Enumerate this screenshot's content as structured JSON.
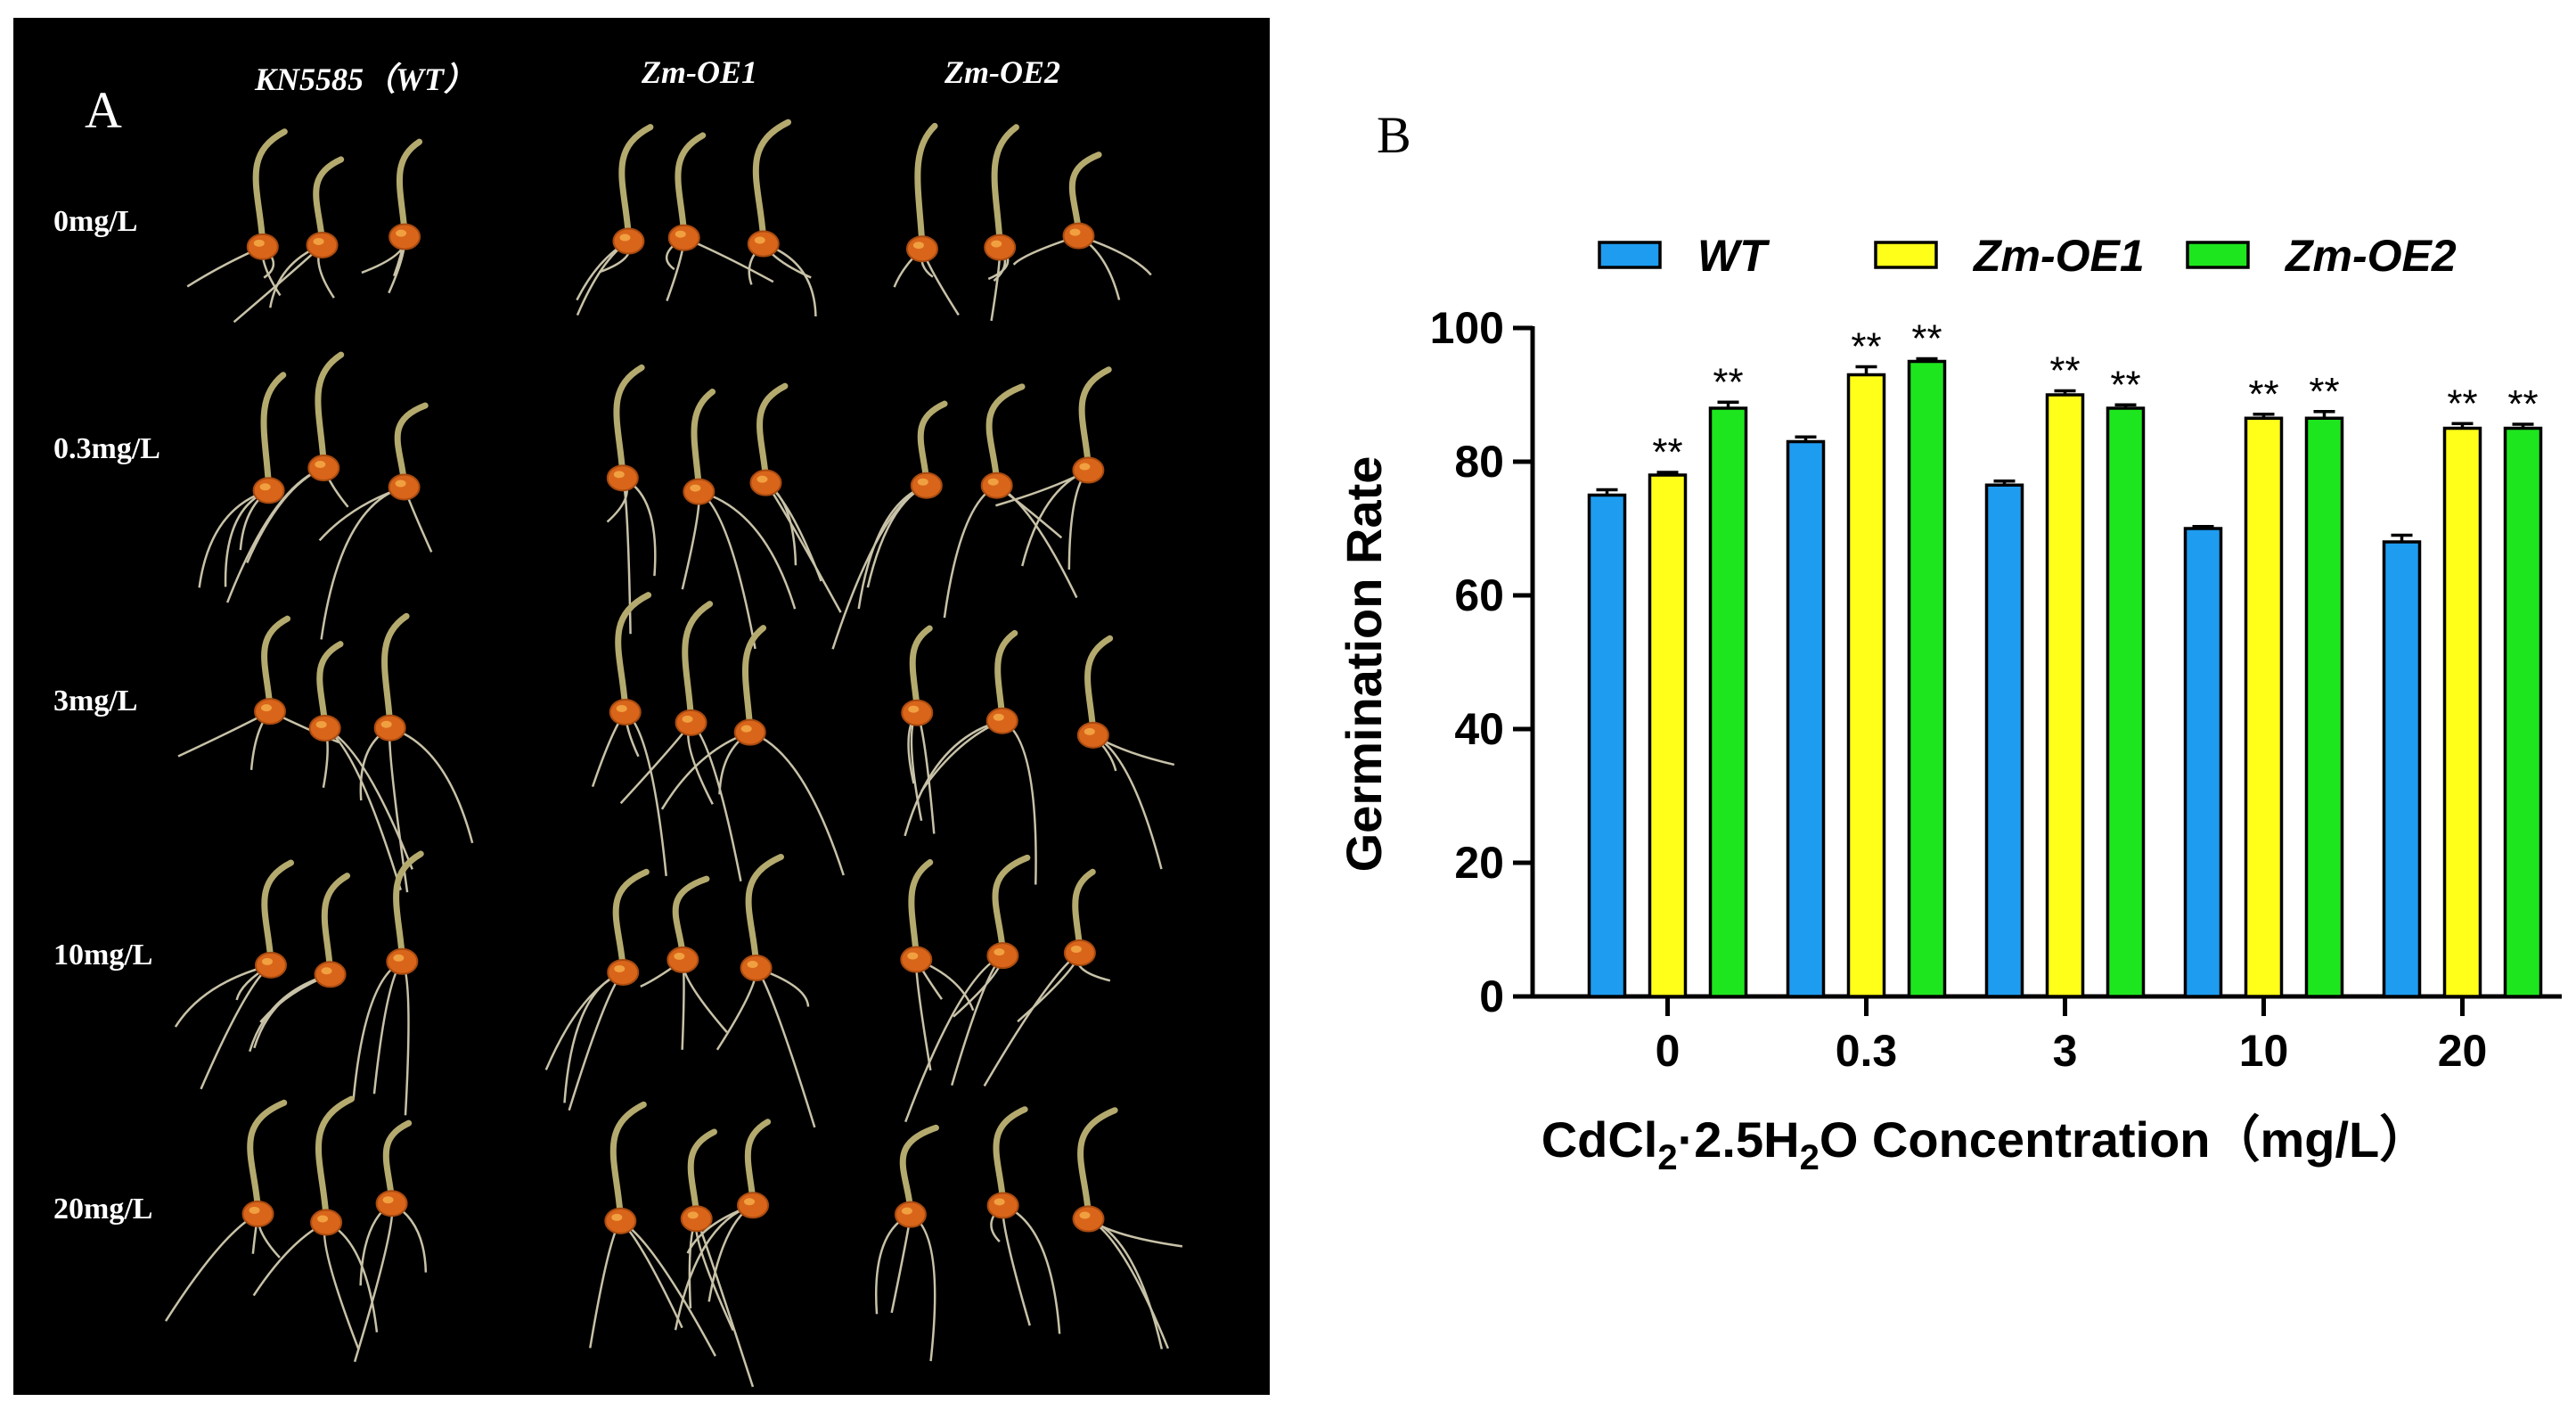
{
  "panel_a": {
    "letter": "A",
    "column_headers": [
      "KN5585（WT）",
      "Zm-OE1",
      "Zm-OE2"
    ],
    "row_labels": [
      "0mg/L",
      "0.3mg/L",
      "3mg/L",
      "10mg/L",
      "20mg/L"
    ]
  },
  "panel_b": {
    "letter": "B"
  },
  "chart_data": {
    "type": "bar",
    "title": "",
    "xlabel": "CdCl₂·2.5H₂O Concentration（mg/L）",
    "xlabel_parts": {
      "p1": "CdCl",
      "sub1": "2",
      "p2": "·2.5H",
      "sub2": "2",
      "p3": "O Concentration（mg/L）"
    },
    "ylabel": "Germination Rate",
    "ylim": [
      0,
      100
    ],
    "yticks": [
      0,
      20,
      40,
      60,
      80,
      100
    ],
    "categories": [
      "0",
      "0.3",
      "3",
      "10",
      "20"
    ],
    "legend_position": "top",
    "series": [
      {
        "name": "WT",
        "color": "#1e9cf0",
        "values": [
          75,
          83,
          76.5,
          70,
          68
        ],
        "errors": [
          0.8,
          0.7,
          0.6,
          0.3,
          1.0
        ],
        "sig": [
          "",
          "",
          "",
          "",
          ""
        ]
      },
      {
        "name": "Zm-OE1",
        "color": "#ffff1a",
        "values": [
          78,
          93,
          90,
          86.5,
          85
        ],
        "errors": [
          0.4,
          1.2,
          0.6,
          0.6,
          0.7
        ],
        "sig": [
          "**",
          "**",
          "**",
          "**",
          "**"
        ]
      },
      {
        "name": "Zm-OE2",
        "color": "#1ee61e",
        "values": [
          88,
          95,
          88,
          86.5,
          85
        ],
        "errors": [
          0.9,
          0.4,
          0.5,
          1.0,
          0.6
        ],
        "sig": [
          "**",
          "**",
          "**",
          "**",
          "**"
        ]
      }
    ]
  }
}
